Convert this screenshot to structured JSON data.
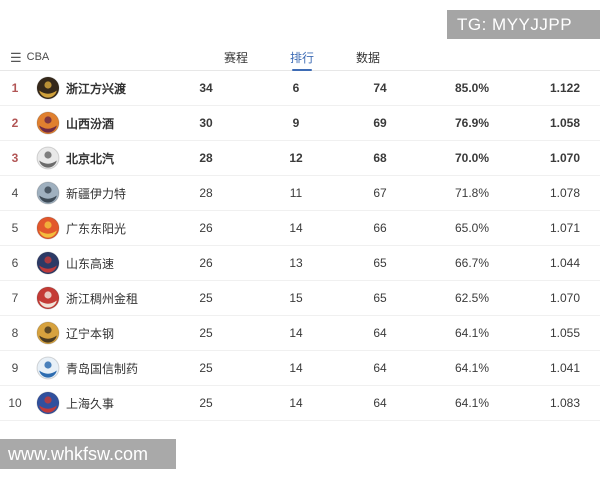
{
  "watermarks": {
    "top": "TG: MYYJJPP",
    "bottom": "www.whkfsw.com"
  },
  "header": {
    "title": "CBA",
    "menu_icon": "hamburger-icon"
  },
  "tabs": [
    {
      "id": "schedule",
      "label": "赛程",
      "active": false
    },
    {
      "id": "rankings",
      "label": "排行",
      "active": true
    },
    {
      "id": "stats",
      "label": "数据",
      "active": false
    }
  ],
  "colors": {
    "accent_blue": "#3e6cb5",
    "rank_red": "#b25555",
    "watermark_gray": "#a5a5a5",
    "separator": "#f0f0f0"
  },
  "standings": [
    {
      "rank": "1",
      "team": "浙江方兴渡",
      "wins": "34",
      "losses": "6",
      "points": "74",
      "win_pct": "85.0%",
      "ratio": "1.122",
      "top3": true,
      "logo": {
        "name": "zhejiang-lions-logo",
        "bg": "#35281a",
        "accent": "#d0a23c"
      }
    },
    {
      "rank": "2",
      "team": "山西汾酒",
      "wins": "30",
      "losses": "9",
      "points": "69",
      "win_pct": "76.9%",
      "ratio": "1.058",
      "top3": true,
      "logo": {
        "name": "shanxi-loongs-logo",
        "bg": "#e0802f",
        "accent": "#6f2a44"
      }
    },
    {
      "rank": "3",
      "team": "北京北汽",
      "wins": "28",
      "losses": "12",
      "points": "68",
      "win_pct": "70.0%",
      "ratio": "1.070",
      "top3": true,
      "logo": {
        "name": "beijing-ducks-logo",
        "bg": "#e9e9e9",
        "accent": "#6b6b6b"
      }
    },
    {
      "rank": "4",
      "team": "新疆伊力特",
      "wins": "28",
      "losses": "11",
      "points": "67",
      "win_pct": "71.8%",
      "ratio": "1.078",
      "top3": false,
      "logo": {
        "name": "xinjiang-flying-tigers-logo",
        "bg": "#9fb0bf",
        "accent": "#3d4a56"
      }
    },
    {
      "rank": "5",
      "team": "广东东阳光",
      "wins": "26",
      "losses": "14",
      "points": "66",
      "win_pct": "65.0%",
      "ratio": "1.071",
      "top3": false,
      "logo": {
        "name": "guangdong-southern-tigers-logo",
        "bg": "#e2572c",
        "accent": "#f3bd3e"
      }
    },
    {
      "rank": "6",
      "team": "山东高速",
      "wins": "26",
      "losses": "13",
      "points": "65",
      "win_pct": "66.7%",
      "ratio": "1.044",
      "top3": false,
      "logo": {
        "name": "shandong-hi-speed-logo",
        "bg": "#2c3a66",
        "accent": "#c03a3a"
      }
    },
    {
      "rank": "7",
      "team": "浙江稠州金租",
      "wins": "25",
      "losses": "15",
      "points": "65",
      "win_pct": "62.5%",
      "ratio": "1.070",
      "top3": false,
      "logo": {
        "name": "zhejiang-golden-bulls-logo",
        "bg": "#c43b35",
        "accent": "#f0e3d8"
      }
    },
    {
      "rank": "8",
      "team": "辽宁本钢",
      "wins": "25",
      "losses": "14",
      "points": "64",
      "win_pct": "64.1%",
      "ratio": "1.055",
      "top3": false,
      "logo": {
        "name": "liaoning-flying-leopards-logo",
        "bg": "#d7a23e",
        "accent": "#4a3b22"
      }
    },
    {
      "rank": "9",
      "team": "青岛国信制药",
      "wins": "25",
      "losses": "14",
      "points": "64",
      "win_pct": "64.1%",
      "ratio": "1.041",
      "top3": false,
      "logo": {
        "name": "qingdao-eagles-logo",
        "bg": "#e8f0f7",
        "accent": "#2d6cb0"
      }
    },
    {
      "rank": "10",
      "team": "上海久事",
      "wins": "25",
      "losses": "14",
      "points": "64",
      "win_pct": "64.1%",
      "ratio": "1.083",
      "top3": false,
      "logo": {
        "name": "shanghai-sharks-logo",
        "bg": "#30509e",
        "accent": "#c03a3a"
      }
    }
  ]
}
